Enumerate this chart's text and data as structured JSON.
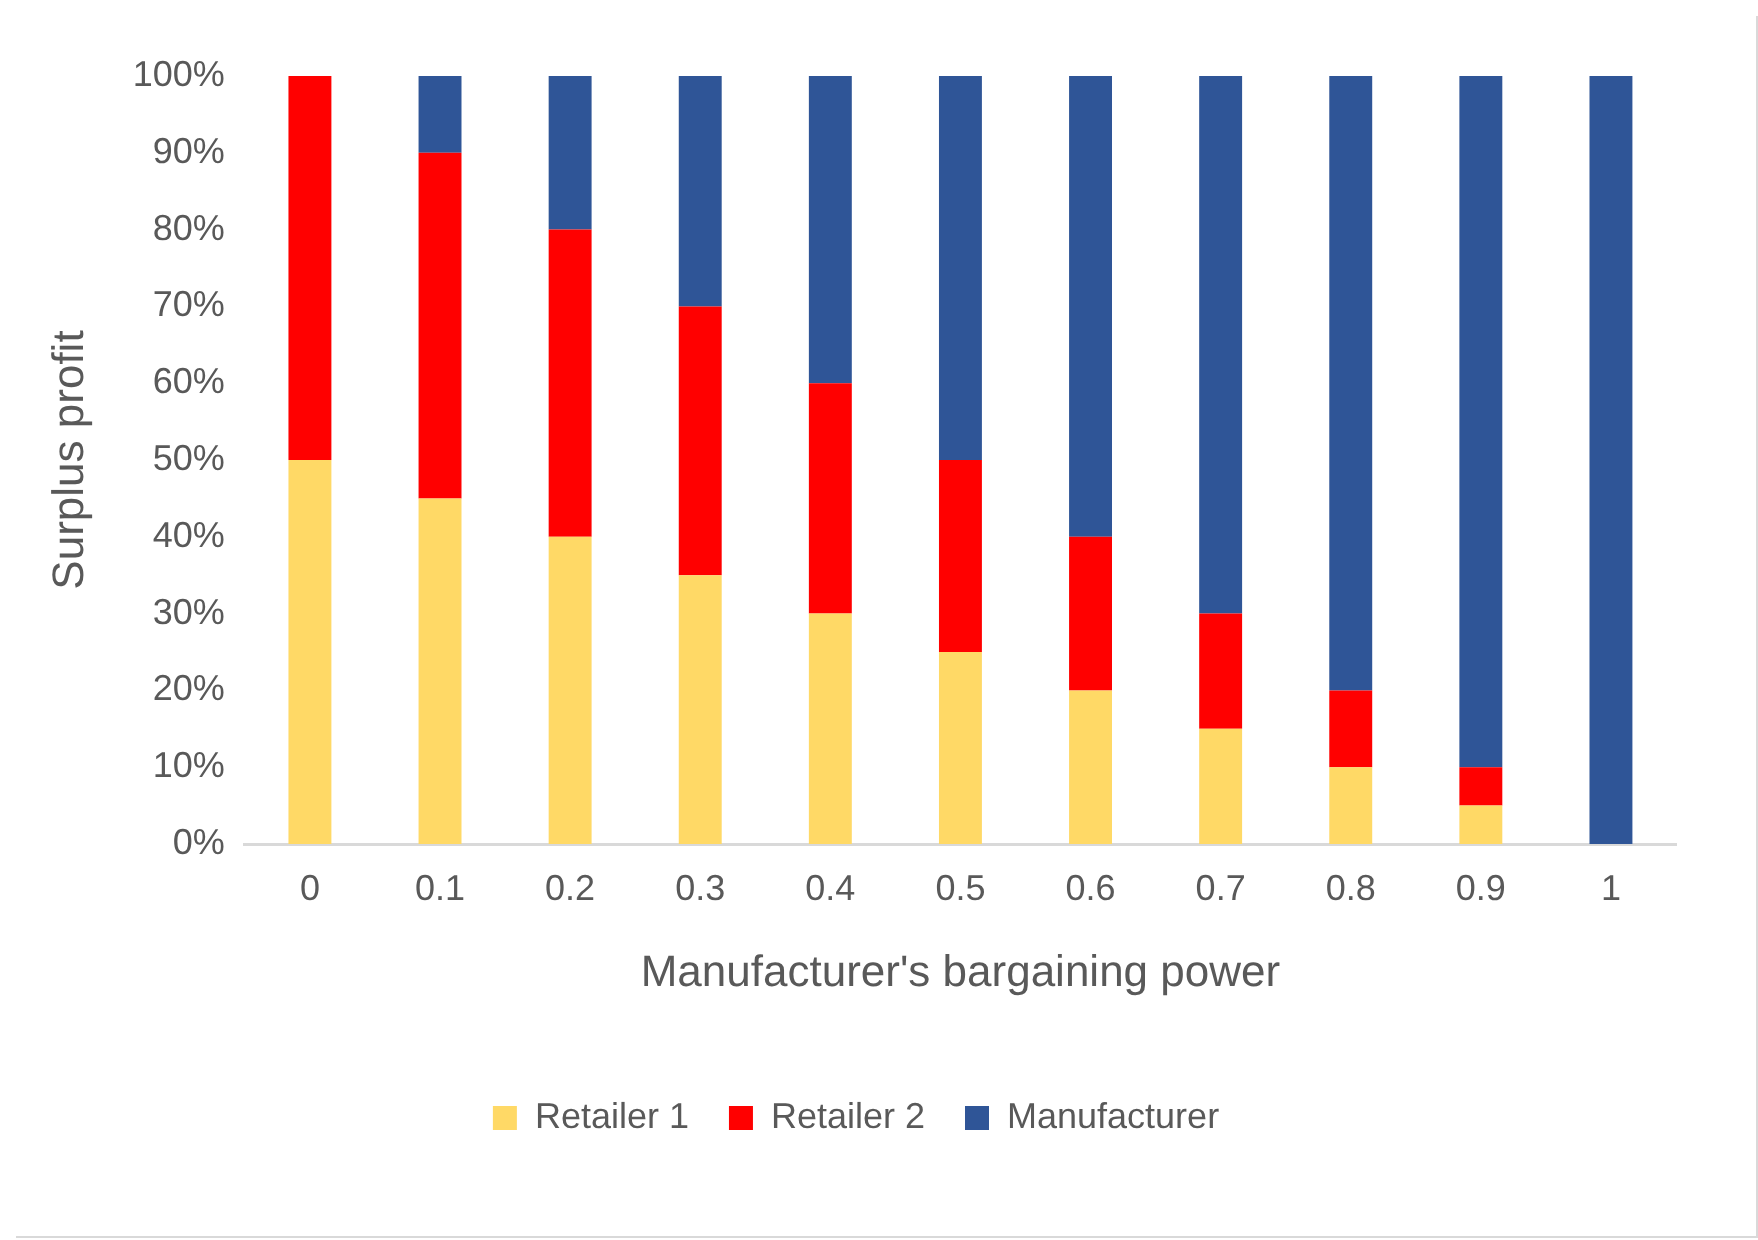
{
  "chart_data": {
    "type": "bar",
    "stacked": true,
    "xlabel": "Manufacturer's bargaining power",
    "ylabel": "Surplus profit",
    "categories": [
      "0",
      "0.1",
      "0.2",
      "0.3",
      "0.4",
      "0.5",
      "0.6",
      "0.7",
      "0.8",
      "0.9",
      "1"
    ],
    "series": [
      {
        "name": "Retailer 1",
        "color": "#ffd966",
        "values": [
          50,
          45,
          40,
          35,
          30,
          25,
          20,
          15,
          10,
          5,
          0
        ]
      },
      {
        "name": "Retailer 2",
        "color": "#ff0000",
        "values": [
          50,
          45,
          40,
          35,
          30,
          25,
          20,
          15,
          10,
          5,
          0
        ]
      },
      {
        "name": "Manufacturer",
        "color": "#2f5597",
        "values": [
          0,
          10,
          20,
          30,
          40,
          50,
          60,
          70,
          80,
          90,
          100
        ]
      }
    ],
    "ylim": [
      0,
      100
    ],
    "yticks": [
      {
        "value": 0,
        "label": "0%"
      },
      {
        "value": 10,
        "label": "10%"
      },
      {
        "value": 20,
        "label": "20%"
      },
      {
        "value": 30,
        "label": "30%"
      },
      {
        "value": 40,
        "label": "40%"
      },
      {
        "value": 50,
        "label": "50%"
      },
      {
        "value": 60,
        "label": "60%"
      },
      {
        "value": 70,
        "label": "70%"
      },
      {
        "value": 80,
        "label": "80%"
      },
      {
        "value": 90,
        "label": "90%"
      },
      {
        "value": 100,
        "label": "100%"
      }
    ],
    "grid": false,
    "legend": "bottom"
  }
}
